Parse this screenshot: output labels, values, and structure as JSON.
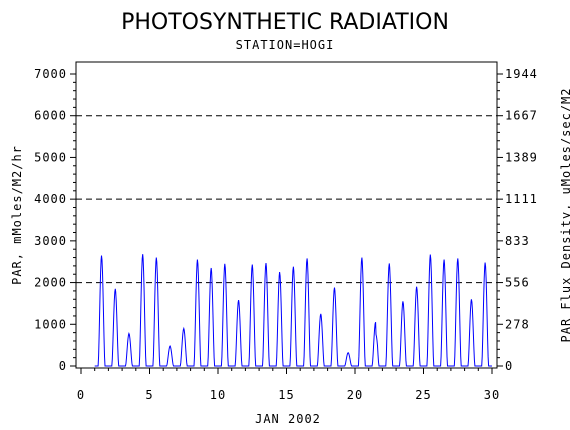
{
  "chart_data": {
    "type": "line",
    "title": "PHOTOSYNTHETIC RADIATION",
    "subtitle": "STATION=HOGI",
    "xlabel": "JAN 2002",
    "ylabel_left": "PAR, mMoles/M2/hr",
    "ylabel_right": "PAR Flux Density, uMoles/sec/M2",
    "xlim": [
      0,
      30
    ],
    "ylim": [
      0,
      7000
    ],
    "x_ticks": [
      0,
      5,
      10,
      15,
      20,
      25,
      30
    ],
    "x_tick_labels": [
      "0",
      "5",
      "10",
      "15",
      "20",
      "25",
      "30"
    ],
    "y_ticks": [
      0,
      1000,
      2000,
      3000,
      4000,
      5000,
      6000,
      7000
    ],
    "y_tick_labels": [
      "0",
      "1000",
      "2000",
      "3000",
      "4000",
      "5000",
      "6000",
      "7000"
    ],
    "y2_tick_values": [
      0,
      1000,
      2000,
      3000,
      4000,
      5000,
      6000,
      7000
    ],
    "y2_tick_labels": [
      "0",
      "278",
      "556",
      "833",
      "1111",
      "1389",
      "1667",
      "1944"
    ],
    "dashed_gridlines_y": [
      2000,
      4000,
      6000
    ],
    "line_color": "#0000ff",
    "daily_peaks": [
      {
        "day": 1,
        "peak": 2650
      },
      {
        "day": 2,
        "peak": 1850
      },
      {
        "day": 3,
        "peak": 780
      },
      {
        "day": 4,
        "peak": 2680
      },
      {
        "day": 5,
        "peak": 2600
      },
      {
        "day": 6,
        "peak": 480
      },
      {
        "day": 7,
        "peak": 900
      },
      {
        "day": 8,
        "peak": 2550
      },
      {
        "day": 9,
        "peak": 2350
      },
      {
        "day": 10,
        "peak": 2450
      },
      {
        "day": 11,
        "peak": 1580
      },
      {
        "day": 12,
        "peak": 2430
      },
      {
        "day": 13,
        "peak": 2470
      },
      {
        "day": 14,
        "peak": 2250
      },
      {
        "day": 15,
        "peak": 2380
      },
      {
        "day": 16,
        "peak": 2580
      },
      {
        "day": 17,
        "peak": 1250
      },
      {
        "day": 18,
        "peak": 1880
      },
      {
        "day": 19,
        "peak": 320
      },
      {
        "day": 20,
        "peak": 2600
      },
      {
        "day": 21,
        "peak": 1050,
        "secondary": 780
      },
      {
        "day": 22,
        "peak": 2460
      },
      {
        "day": 23,
        "peak": 1550
      },
      {
        "day": 24,
        "peak": 1900
      },
      {
        "day": 25,
        "peak": 2670
      },
      {
        "day": 26,
        "peak": 2550
      },
      {
        "day": 27,
        "peak": 2580
      },
      {
        "day": 28,
        "peak": 1600
      },
      {
        "day": 29,
        "peak": 2480
      }
    ]
  }
}
